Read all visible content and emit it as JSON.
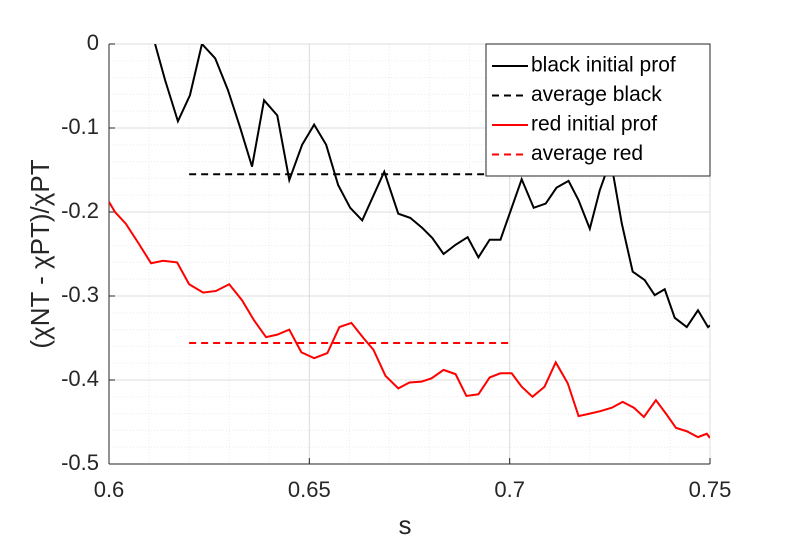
{
  "chart_data": {
    "type": "line",
    "xlabel": "s",
    "ylabel": "(χNT - χPT)/χPT",
    "xlim": [
      0.6,
      0.75
    ],
    "xticks": [
      0.6,
      0.65,
      0.7,
      0.75
    ],
    "ylim": [
      -0.5,
      0
    ],
    "yticks": [
      -0.5,
      -0.4,
      -0.3,
      -0.2,
      -0.1,
      0
    ],
    "grid": true,
    "minor_grid": true,
    "legend": "upper right",
    "series": [
      {
        "name": "black initial prof",
        "color": "#000000",
        "linestyle": "solid",
        "x": [
          0.6115,
          0.614,
          0.6172,
          0.6202,
          0.6232,
          0.6265,
          0.6297,
          0.6327,
          0.6357,
          0.6387,
          0.642,
          0.645,
          0.6482,
          0.6512,
          0.6542,
          0.6572,
          0.6602,
          0.6632,
          0.6687,
          0.6722,
          0.6752,
          0.6782,
          0.6807,
          0.6835,
          0.6865,
          0.6895,
          0.6922,
          0.695,
          0.6977,
          0.703,
          0.706,
          0.709,
          0.7117,
          0.7147,
          0.7172,
          0.72,
          0.7225,
          0.7252,
          0.728,
          0.7307,
          0.7337,
          0.7362,
          0.7387,
          0.7412,
          0.7442,
          0.747,
          0.7495,
          0.75
        ],
        "values": [
          0,
          -0.043,
          -0.092,
          -0.061,
          0,
          -0.017,
          -0.055,
          -0.099,
          -0.146,
          -0.067,
          -0.085,
          -0.162,
          -0.12,
          -0.096,
          -0.12,
          -0.168,
          -0.195,
          -0.21,
          -0.152,
          -0.202,
          -0.207,
          -0.219,
          -0.231,
          -0.25,
          -0.239,
          -0.23,
          -0.254,
          -0.233,
          -0.233,
          -0.161,
          -0.195,
          -0.19,
          -0.171,
          -0.163,
          -0.186,
          -0.22,
          -0.174,
          -0.138,
          -0.214,
          -0.271,
          -0.281,
          -0.299,
          -0.292,
          -0.326,
          -0.337,
          -0.317,
          -0.337,
          -0.335
        ]
      },
      {
        "name": "average black",
        "color": "#000000",
        "linestyle": "dashed",
        "x": [
          0.62,
          0.7
        ],
        "values": [
          -0.155,
          -0.155
        ]
      },
      {
        "name": "red initial prof",
        "color": "#ff0000",
        "linestyle": "solid",
        "x": [
          0.6,
          0.6015,
          0.6042,
          0.6072,
          0.6105,
          0.6135,
          0.617,
          0.62,
          0.6235,
          0.6267,
          0.63,
          0.6332,
          0.6362,
          0.6392,
          0.642,
          0.645,
          0.648,
          0.6512,
          0.6545,
          0.6575,
          0.6605,
          0.6635,
          0.666,
          0.669,
          0.6722,
          0.675,
          0.678,
          0.6805,
          0.6835,
          0.6865,
          0.6892,
          0.6922,
          0.695,
          0.6977,
          0.7005,
          0.703,
          0.7057,
          0.7087,
          0.7115,
          0.7145,
          0.7172,
          0.72,
          0.7227,
          0.7255,
          0.7282,
          0.731,
          0.7335,
          0.7365,
          0.739,
          0.7415,
          0.7442,
          0.747,
          0.7492,
          0.75
        ],
        "values": [
          -0.188,
          -0.2,
          -0.214,
          -0.236,
          -0.261,
          -0.258,
          -0.26,
          -0.286,
          -0.296,
          -0.294,
          -0.286,
          -0.305,
          -0.329,
          -0.349,
          -0.346,
          -0.34,
          -0.367,
          -0.374,
          -0.368,
          -0.337,
          -0.332,
          -0.35,
          -0.364,
          -0.395,
          -0.41,
          -0.403,
          -0.402,
          -0.398,
          -0.388,
          -0.393,
          -0.419,
          -0.417,
          -0.397,
          -0.392,
          -0.392,
          -0.408,
          -0.42,
          -0.408,
          -0.379,
          -0.404,
          -0.443,
          -0.44,
          -0.437,
          -0.433,
          -0.426,
          -0.433,
          -0.444,
          -0.424,
          -0.44,
          -0.457,
          -0.461,
          -0.468,
          -0.464,
          -0.469
        ]
      },
      {
        "name": "average red",
        "color": "#ff0000",
        "linestyle": "dashed",
        "x": [
          0.62,
          0.7
        ],
        "values": [
          -0.356,
          -0.356
        ]
      }
    ]
  }
}
